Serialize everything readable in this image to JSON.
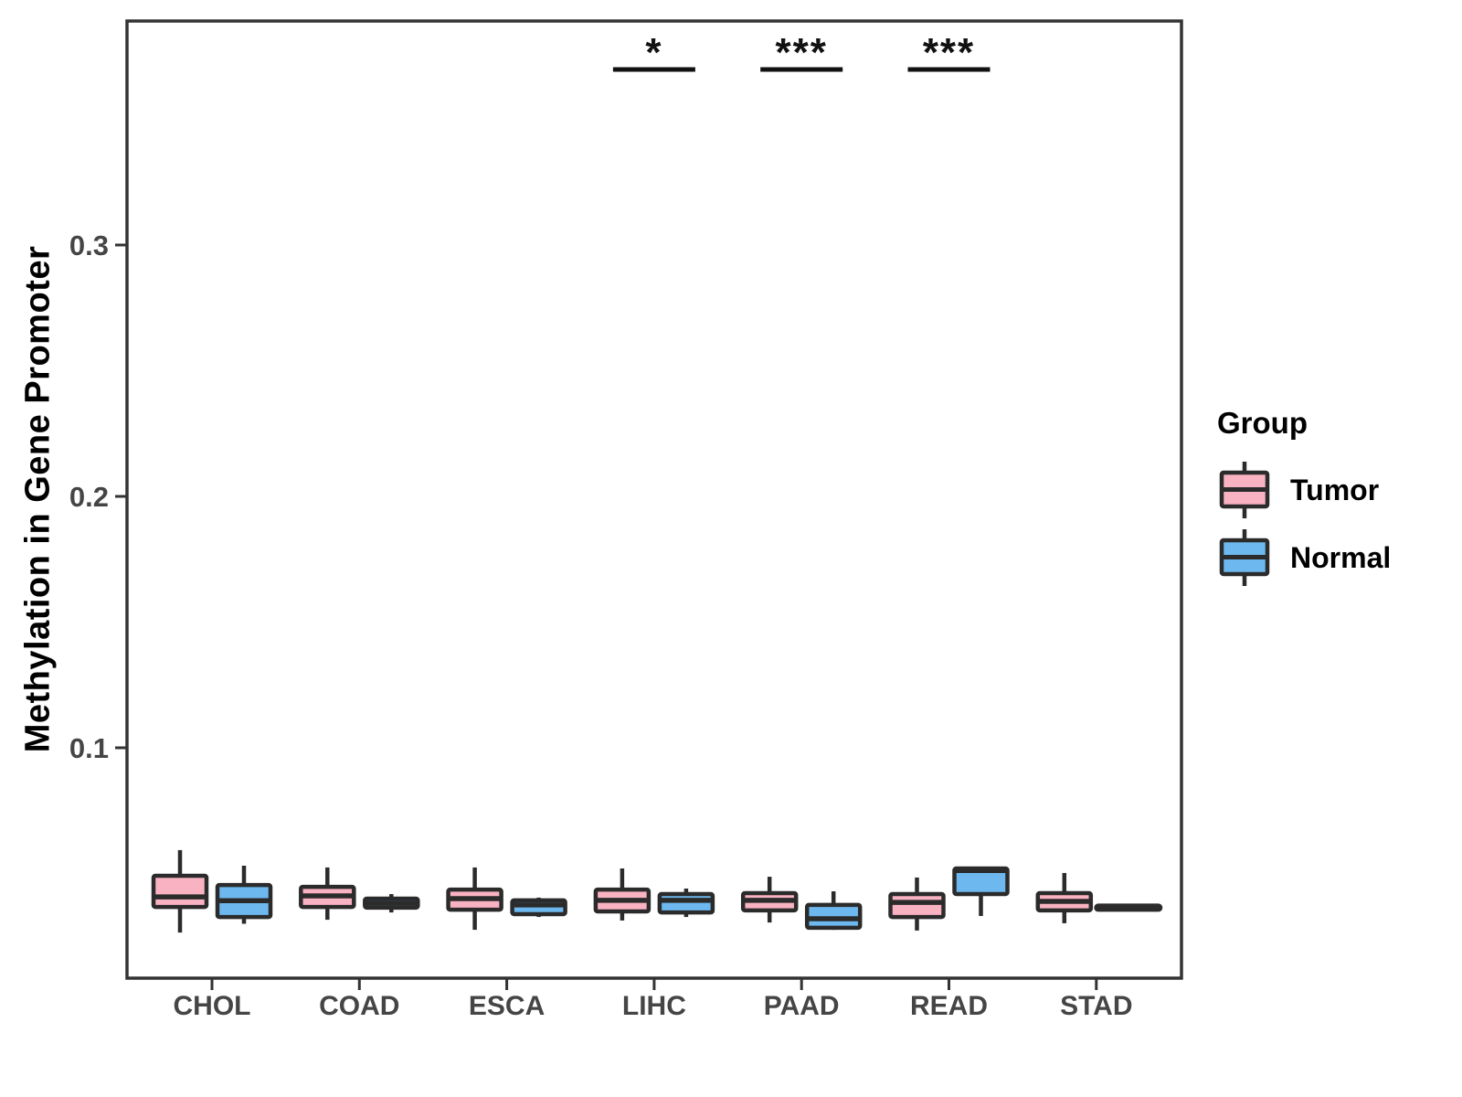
{
  "figure": {
    "y_axis_title": "Methylation in Gene Promoter"
  },
  "legend": {
    "title": "Group",
    "entries": [
      {
        "label": "Tumor",
        "color": "#F9B2C1"
      },
      {
        "label": "Normal",
        "color": "#6DB9EF"
      }
    ]
  },
  "style": {
    "box_border_color": "#2b2b2b",
    "panel_border_color": "#333333",
    "tick_color": "#333333",
    "tick_label_color": "#454545",
    "significance_color": "#111111",
    "background": "#ffffff"
  },
  "chart_data": {
    "type": "boxplot",
    "title": "",
    "xlabel": "",
    "ylabel": "Methylation in Gene Promoter",
    "categories": [
      "CHOL",
      "COAD",
      "ESCA",
      "LIHC",
      "PAAD",
      "READ",
      "STAD"
    ],
    "y_ticks": [
      0.1,
      0.2,
      0.3
    ],
    "y_tick_labels": [
      "0.1",
      "0.2",
      "0.3"
    ],
    "ylim": [
      0.008,
      0.387
    ],
    "grid": false,
    "legend_position": "right",
    "series": [
      {
        "name": "Tumor",
        "color": "#F9B2C1",
        "boxes": [
          {
            "category": "CHOL",
            "min": 0.0265,
            "q1": 0.0367,
            "median": 0.0407,
            "q3": 0.0491,
            "max": 0.0593
          },
          {
            "category": "COAD",
            "min": 0.0316,
            "q1": 0.0367,
            "median": 0.0411,
            "q3": 0.0447,
            "max": 0.0524
          },
          {
            "category": "ESCA",
            "min": 0.0276,
            "q1": 0.0356,
            "median": 0.04,
            "q3": 0.0436,
            "max": 0.0524
          },
          {
            "category": "LIHC",
            "min": 0.0313,
            "q1": 0.0349,
            "median": 0.0393,
            "q3": 0.0436,
            "max": 0.052
          },
          {
            "category": "PAAD",
            "min": 0.0305,
            "q1": 0.0353,
            "median": 0.0393,
            "q3": 0.0422,
            "max": 0.0487
          },
          {
            "category": "READ",
            "min": 0.0273,
            "q1": 0.0327,
            "median": 0.0385,
            "q3": 0.0418,
            "max": 0.0484
          },
          {
            "category": "STAD",
            "min": 0.0302,
            "q1": 0.0353,
            "median": 0.0389,
            "q3": 0.0422,
            "max": 0.0502
          }
        ]
      },
      {
        "name": "Normal",
        "color": "#6DB9EF",
        "boxes": [
          {
            "category": "CHOL",
            "min": 0.03,
            "q1": 0.0327,
            "median": 0.0392,
            "q3": 0.0454,
            "max": 0.0531
          },
          {
            "category": "COAD",
            "min": 0.0345,
            "q1": 0.0364,
            "median": 0.0382,
            "q3": 0.04,
            "max": 0.0418
          },
          {
            "category": "ESCA",
            "min": 0.0327,
            "q1": 0.0338,
            "median": 0.0375,
            "q3": 0.0393,
            "max": 0.0404
          },
          {
            "category": "LIHC",
            "min": 0.0327,
            "q1": 0.0345,
            "median": 0.0393,
            "q3": 0.0418,
            "max": 0.044
          },
          {
            "category": "PAAD",
            "min": 0.0276,
            "q1": 0.0284,
            "median": 0.032,
            "q3": 0.0375,
            "max": 0.0429
          },
          {
            "category": "READ",
            "min": 0.0331,
            "q1": 0.0418,
            "median": 0.0512,
            "q3": 0.052,
            "max": 0.052
          },
          {
            "category": "STAD",
            "min": 0.036,
            "q1": 0.036,
            "median": 0.0364,
            "q3": 0.0368,
            "max": 0.0368
          }
        ]
      }
    ],
    "significance": [
      {
        "category": "LIHC",
        "label": "*"
      },
      {
        "category": "PAAD",
        "label": "***"
      },
      {
        "category": "READ",
        "label": "***"
      }
    ]
  }
}
